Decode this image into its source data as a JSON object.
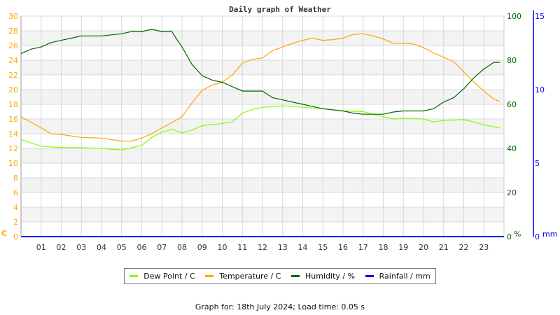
{
  "chart_data": {
    "type": "line",
    "title": "Daily graph of Weather",
    "x_tick_labels": [
      "01",
      "02",
      "03",
      "04",
      "05",
      "06",
      "07",
      "08",
      "09",
      "10",
      "11",
      "12",
      "13",
      "14",
      "15",
      "16",
      "17",
      "18",
      "19",
      "20",
      "21",
      "22",
      "23"
    ],
    "xlim": [
      0,
      24
    ],
    "axes": {
      "left": {
        "unit": "C",
        "range": [
          0,
          30
        ],
        "ticks": [
          0,
          2,
          4,
          6,
          8,
          10,
          12,
          14,
          16,
          18,
          20,
          22,
          24,
          26,
          28,
          30
        ],
        "color": "#ffa500"
      },
      "right": {
        "unit": "%",
        "range": [
          0,
          100
        ],
        "ticks": [
          0,
          20,
          40,
          60,
          80,
          100
        ],
        "color": "#006400"
      },
      "rain": {
        "unit": "mm",
        "range": [
          0,
          15
        ],
        "ticks": [
          0,
          5,
          10,
          15
        ],
        "color": "#0000ff"
      }
    },
    "grid": true,
    "legend_position": "bottom",
    "series": [
      {
        "name": "Dew Point / C",
        "axis": "left",
        "color": "#80ff00",
        "x": [
          0,
          1,
          2,
          3,
          4,
          5,
          6,
          6.5,
          7,
          7.5,
          8,
          8.5,
          9,
          10,
          10.5,
          11,
          11.5,
          12,
          13,
          14,
          15,
          16,
          17,
          18,
          18.5,
          19,
          20,
          20.5,
          21,
          22,
          22.5,
          23,
          23.8
        ],
        "y": [
          13.2,
          12.3,
          12.1,
          12.1,
          12.0,
          11.8,
          12.4,
          13.5,
          14.2,
          14.6,
          14.1,
          14.5,
          15.1,
          15.4,
          15.6,
          16.8,
          17.3,
          17.6,
          17.8,
          17.6,
          17.4,
          17.1,
          17.0,
          16.3,
          16.0,
          16.1,
          16.0,
          15.6,
          15.8,
          15.9,
          15.6,
          15.2,
          14.8
        ]
      },
      {
        "name": "Temperature / C",
        "axis": "left",
        "color": "#ffa500",
        "x": [
          0,
          1,
          1.5,
          2,
          3,
          4,
          5,
          5.5,
          6,
          6.5,
          7,
          7.5,
          8,
          8.5,
          9,
          9.5,
          10,
          10.5,
          11,
          11.5,
          12,
          12.5,
          13,
          13.5,
          14,
          14.5,
          15,
          15.5,
          16,
          16.5,
          17,
          17.5,
          18,
          18.5,
          19,
          19.5,
          20,
          20.5,
          21,
          21.5,
          22,
          22.5,
          23,
          23.5,
          23.8
        ],
        "y": [
          16.3,
          14.8,
          14.0,
          13.9,
          13.5,
          13.4,
          13.0,
          13.0,
          13.4,
          14.0,
          14.8,
          15.5,
          16.3,
          18.2,
          19.9,
          20.6,
          21.0,
          22.0,
          23.6,
          24.1,
          24.3,
          25.3,
          25.8,
          26.3,
          26.7,
          27.0,
          26.7,
          26.8,
          27.0,
          27.5,
          27.6,
          27.3,
          26.9,
          26.3,
          26.3,
          26.2,
          25.7,
          25.0,
          24.4,
          23.8,
          22.4,
          21.0,
          19.8,
          18.7,
          18.4
        ]
      },
      {
        "name": "Humidity / %",
        "axis": "right",
        "color": "#006400",
        "x": [
          0,
          0.5,
          1,
          1.5,
          2,
          2.5,
          3,
          4,
          5,
          5.5,
          6,
          6.5,
          7,
          7.5,
          7.7,
          8,
          8.5,
          9,
          9.5,
          10,
          10.5,
          11,
          11.5,
          12,
          12.5,
          13,
          14,
          14.5,
          15,
          16,
          16.5,
          17,
          18,
          18.5,
          19,
          20,
          20.5,
          21,
          21.5,
          22,
          22.5,
          23,
          23.5,
          23.8
        ],
        "y": [
          83,
          85,
          86,
          88,
          89,
          90,
          91,
          91,
          92,
          93,
          93,
          94,
          93,
          93,
          90,
          86,
          78,
          73,
          71,
          70,
          68,
          66,
          66,
          66,
          63,
          62,
          60,
          59,
          58,
          57,
          56,
          55.5,
          55.5,
          56.5,
          57,
          57,
          58,
          61,
          63,
          67,
          72,
          76,
          79,
          79
        ]
      },
      {
        "name": "Rainfall / mm",
        "axis": "rain",
        "color": "#0000ff",
        "x": [
          0,
          24
        ],
        "y": [
          0,
          0
        ]
      }
    ]
  },
  "footer": "Graph for: 18th July 2024; Load time: 0.05 s"
}
